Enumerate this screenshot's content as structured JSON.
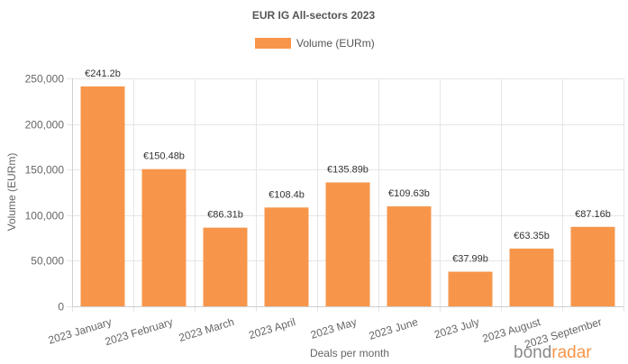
{
  "chart_data": {
    "type": "bar",
    "title": "EUR IG All-sectors 2023",
    "xlabel": "Deals per month",
    "ylabel": "Volume (EURm)",
    "ylim": [
      0,
      250000
    ],
    "yticks": [
      0,
      50000,
      100000,
      150000,
      200000,
      250000
    ],
    "ytick_labels": [
      "0",
      "50,000",
      "100,000",
      "150,000",
      "200,000",
      "250,000"
    ],
    "grid": true,
    "legend_position": "top-center",
    "categories": [
      "2023 January",
      "2023 February",
      "2023 March",
      "2023 April",
      "2023 May",
      "2023 June",
      "2023 July",
      "2023 August",
      "2023 September"
    ],
    "series": [
      {
        "name": "Volume (EURm)",
        "color": "#f7964a",
        "values": [
          241200,
          150480,
          86310,
          108400,
          135890,
          109630,
          37990,
          63350,
          87160
        ],
        "labels": [
          "€241.2b",
          "€150.48b",
          "€86.31b",
          "€108.4b",
          "€135.89b",
          "€109.63b",
          "€37.99b",
          "€63.35b",
          "€87.16b"
        ]
      }
    ]
  },
  "watermark": {
    "part1": "bond",
    "part2": "radar"
  }
}
